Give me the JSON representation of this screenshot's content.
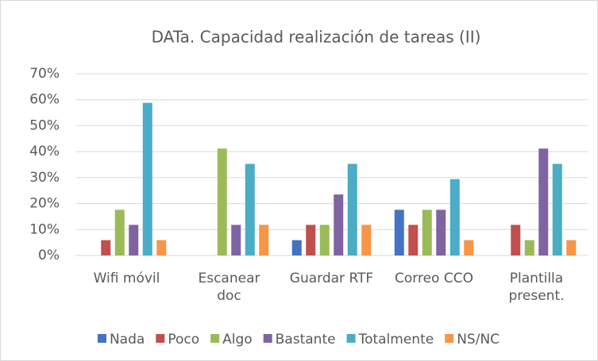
{
  "chart_data": {
    "type": "bar",
    "title": "DATa. Capacidad realización de tareas (II)",
    "categories": [
      "Wifi móvil",
      "Escanear doc",
      "Guardar RTF",
      "Correo CCO",
      "Plantilla present."
    ],
    "series": [
      {
        "name": "Nada",
        "color": "#4472c4",
        "values": [
          0,
          0,
          5.9,
          17.6,
          0
        ]
      },
      {
        "name": "Poco",
        "color": "#c0504d",
        "values": [
          5.9,
          0,
          11.8,
          11.8,
          11.8
        ]
      },
      {
        "name": "Algo",
        "color": "#9bbb59",
        "values": [
          17.6,
          41.2,
          11.8,
          17.6,
          5.9
        ]
      },
      {
        "name": "Bastante",
        "color": "#8064a2",
        "values": [
          11.8,
          11.8,
          23.5,
          17.6,
          41.2
        ]
      },
      {
        "name": "Totalmente",
        "color": "#4bacc6",
        "values": [
          58.8,
          35.3,
          35.3,
          29.4,
          35.3
        ]
      },
      {
        "name": "NS/NC",
        "color": "#f79646",
        "values": [
          5.9,
          11.8,
          11.8,
          5.9,
          5.9
        ]
      }
    ],
    "ylim": [
      0,
      70
    ],
    "yticks": [
      {
        "value": 0,
        "label": "0%"
      },
      {
        "value": 10,
        "label": "10%"
      },
      {
        "value": 20,
        "label": "20%"
      },
      {
        "value": 30,
        "label": "30%"
      },
      {
        "value": 40,
        "label": "40%"
      },
      {
        "value": 50,
        "label": "50%"
      },
      {
        "value": 60,
        "label": "60%"
      },
      {
        "value": 70,
        "label": "70%"
      }
    ],
    "grid": true,
    "legend": "bottom"
  }
}
